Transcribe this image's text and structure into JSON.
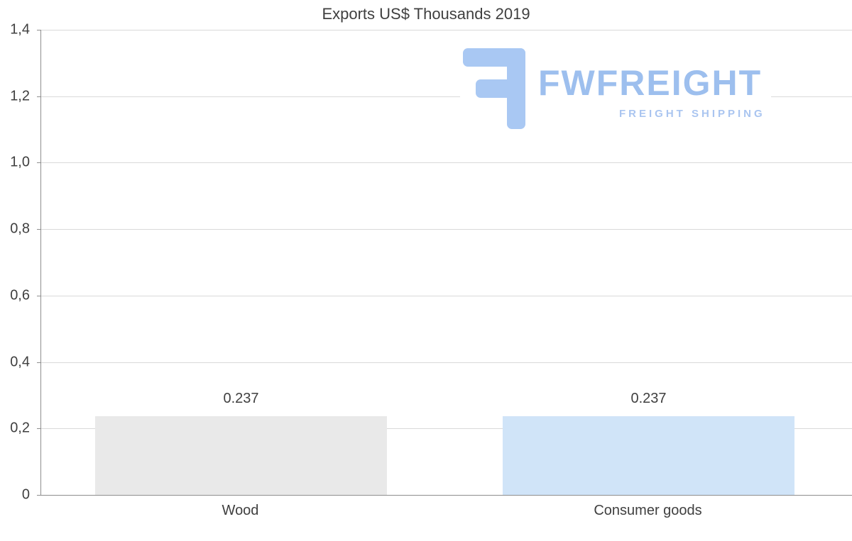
{
  "chart_data": {
    "type": "bar",
    "title": "Exports US$ Thousands 2019",
    "categories": [
      "Wood",
      "Consumer goods"
    ],
    "values": [
      0.237,
      0.237
    ],
    "data_labels": [
      "0.237",
      "0.237"
    ],
    "xlabel": "",
    "ylabel": "",
    "ylim": [
      0,
      1.4
    ],
    "ytick_labels": [
      "0",
      "0,2",
      "0,4",
      "0,6",
      "0,8",
      "1,0",
      "1,2",
      "1,4"
    ],
    "grid": true,
    "legend": false,
    "bar_colors": [
      "#e9e9e9",
      "#d0e4f8"
    ]
  },
  "watermark": {
    "brand": "FWFREIGHT",
    "subtitle": "FREIGHT SHIPPING",
    "logo": "fwfreight-logo",
    "brand_color": "#9dbfee",
    "subtitle_color": "#aac5f0",
    "logo_color": "#a9c8f3"
  }
}
